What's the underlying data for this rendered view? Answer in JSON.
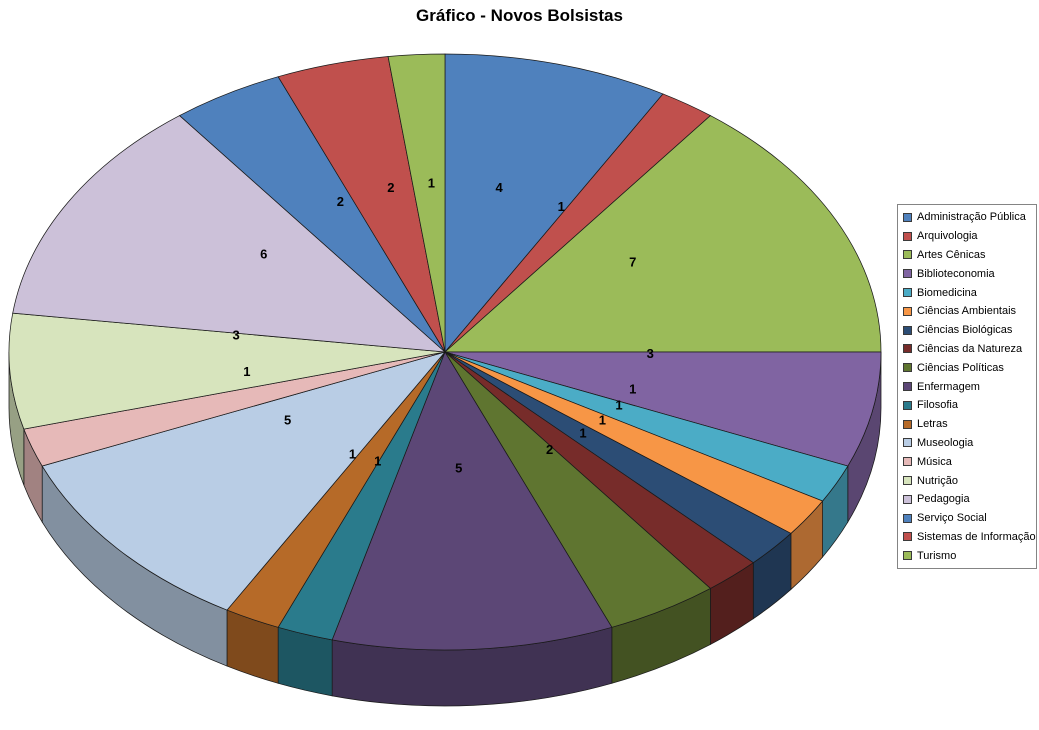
{
  "chart_data": {
    "type": "pie",
    "title": "Gráfico - Novos Bolsistas",
    "style": "3d-pie",
    "legend_position": "right",
    "data_labels": "values",
    "categories": [
      "Administração Pública",
      "Arquivologia",
      "Artes Cênicas",
      "Biblioteconomia",
      "Biomedicina",
      "Ciências Ambientais",
      "Ciências Biológicas",
      "Ciências da Natureza",
      "Ciências Políticas",
      "Enfermagem",
      "Filosofia",
      "Letras",
      "Museologia",
      "Música",
      "Nutrição",
      "Pedagogia",
      "Serviço Social",
      "Sistemas de Informação",
      "Turismo"
    ],
    "values": [
      4,
      1,
      7,
      3,
      1,
      1,
      1,
      1,
      2,
      5,
      1,
      1,
      5,
      1,
      3,
      6,
      2,
      2,
      1
    ],
    "colors": [
      "#4F81BD",
      "#C0504D",
      "#9BBB59",
      "#8064A2",
      "#4BACC6",
      "#F79646",
      "#2C4D75",
      "#772C2A",
      "#5F7530",
      "#5C4776",
      "#2A7B8C",
      "#B66A28",
      "#B9CDE5",
      "#E6B9B8",
      "#D7E4BD",
      "#CCC1D9",
      "#4F81BD",
      "#C0504D",
      "#9BBB59"
    ]
  }
}
